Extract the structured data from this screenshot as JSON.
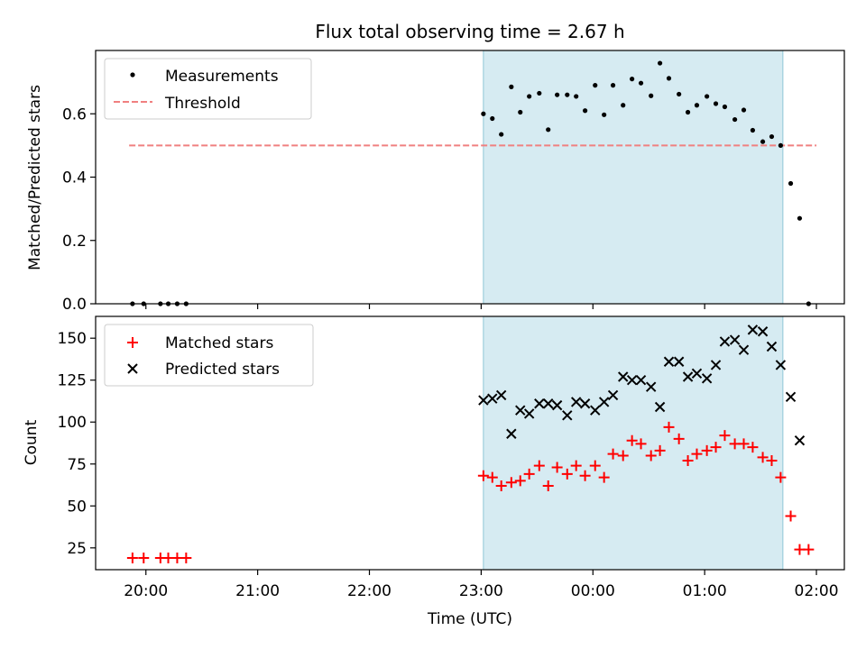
{
  "chart_data": {
    "type": "scatter",
    "title": "Flux total observing time = 2.67 h",
    "xlabel": "Time (UTC)",
    "x_ticks": [
      "20:00",
      "21:00",
      "22:00",
      "23:00",
      "00:00",
      "01:00",
      "02:00"
    ],
    "x_tick_hours": [
      20,
      21,
      22,
      23,
      24,
      25,
      26
    ],
    "xlim_hours": [
      19.55,
      26.25
    ],
    "shaded_span_hours": [
      23.02,
      25.7
    ],
    "shade_color": "#add8e6",
    "panels": [
      {
        "id": "ratio",
        "ylabel": "Matched/Predicted stars",
        "ylim": [
          0,
          0.8
        ],
        "yticks": [
          "0.0",
          "0.2",
          "0.4",
          "0.6"
        ],
        "ytick_values": [
          0,
          0.2,
          0.4,
          0.6
        ],
        "legend_position": "upper-left",
        "threshold": {
          "name": "Threshold",
          "value": 0.5,
          "x_range_hours": [
            19.85,
            26.0
          ],
          "color": "#f08080"
        },
        "series": [
          {
            "name": "Measurements",
            "marker": "dot",
            "color": "#000000",
            "x": [
              19.88,
              19.98,
              20.13,
              20.2,
              20.28,
              20.36,
              23.02,
              23.1,
              23.18,
              23.27,
              23.35,
              23.43,
              23.52,
              23.6,
              23.68,
              23.77,
              23.85,
              23.93,
              24.02,
              24.1,
              24.18,
              24.27,
              24.35,
              24.43,
              24.52,
              24.6,
              24.68,
              24.77,
              24.85,
              24.93,
              25.02,
              25.1,
              25.18,
              25.27,
              25.35,
              25.43,
              25.52,
              25.6,
              25.68,
              25.77,
              25.85,
              25.93
            ],
            "y": [
              0,
              0,
              0,
              0,
              0,
              0,
              0.6,
              0.585,
              0.535,
              0.685,
              0.605,
              0.655,
              0.665,
              0.55,
              0.66,
              0.66,
              0.655,
              0.61,
              0.69,
              0.597,
              0.69,
              0.627,
              0.71,
              0.697,
              0.657,
              0.76,
              0.712,
              0.662,
              0.605,
              0.627,
              0.655,
              0.632,
              0.622,
              0.582,
              0.612,
              0.548,
              0.512,
              0.528,
              0.5,
              0.38,
              0.27,
              0
            ]
          }
        ]
      },
      {
        "id": "counts",
        "ylabel": "Count",
        "ylim": [
          12,
          163
        ],
        "yticks": [
          "25",
          "50",
          "75",
          "100",
          "125",
          "150"
        ],
        "ytick_values": [
          25,
          50,
          75,
          100,
          125,
          150
        ],
        "legend_position": "upper-left",
        "series": [
          {
            "name": "Matched stars",
            "marker": "plus",
            "color": "#ff0000",
            "x": [
              19.88,
              19.98,
              20.13,
              20.2,
              20.28,
              20.36,
              23.02,
              23.1,
              23.18,
              23.27,
              23.35,
              23.43,
              23.52,
              23.6,
              23.68,
              23.77,
              23.85,
              23.93,
              24.02,
              24.1,
              24.18,
              24.27,
              24.35,
              24.43,
              24.52,
              24.6,
              24.68,
              24.77,
              24.85,
              24.93,
              25.02,
              25.1,
              25.18,
              25.27,
              25.35,
              25.43,
              25.52,
              25.6,
              25.68,
              25.77,
              25.85,
              25.93
            ],
            "y": [
              19,
              19,
              19,
              19,
              19,
              19,
              68,
              67,
              62,
              64,
              65,
              69,
              74,
              62,
              73,
              69,
              74,
              68,
              74,
              67,
              81,
              80,
              89,
              87,
              80,
              83,
              97,
              90,
              77,
              81,
              83,
              85,
              92,
              87,
              87,
              85,
              79,
              77,
              67,
              44,
              24,
              24
            ]
          },
          {
            "name": "Predicted stars",
            "marker": "x",
            "color": "#000000",
            "x": [
              23.02,
              23.1,
              23.18,
              23.27,
              23.35,
              23.43,
              23.52,
              23.6,
              23.68,
              23.77,
              23.85,
              23.93,
              24.02,
              24.1,
              24.18,
              24.27,
              24.35,
              24.43,
              24.52,
              24.6,
              24.68,
              24.77,
              24.85,
              24.93,
              25.02,
              25.1,
              25.18,
              25.27,
              25.35,
              25.43,
              25.52,
              25.6,
              25.68,
              25.77,
              25.85
            ],
            "y": [
              113,
              114,
              116,
              93,
              107,
              105,
              111,
              111,
              110,
              104,
              112,
              111,
              107,
              112,
              116,
              127,
              125,
              125,
              121,
              109,
              136,
              136,
              127,
              129,
              126,
              134,
              148,
              149,
              143,
              155,
              154,
              145,
              134,
              115,
              89
            ]
          }
        ]
      }
    ]
  }
}
